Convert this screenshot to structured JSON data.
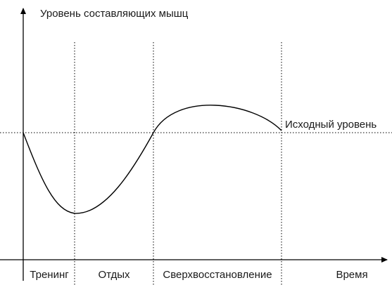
{
  "y_axis_label": "Уровень составляющих мышц",
  "x_axis_label": "Время",
  "baseline_label": "Исходный уровень",
  "phases": [
    {
      "label": "Тренинг"
    },
    {
      "label": "Отдых"
    },
    {
      "label": "Сверхвосстановление"
    }
  ]
}
